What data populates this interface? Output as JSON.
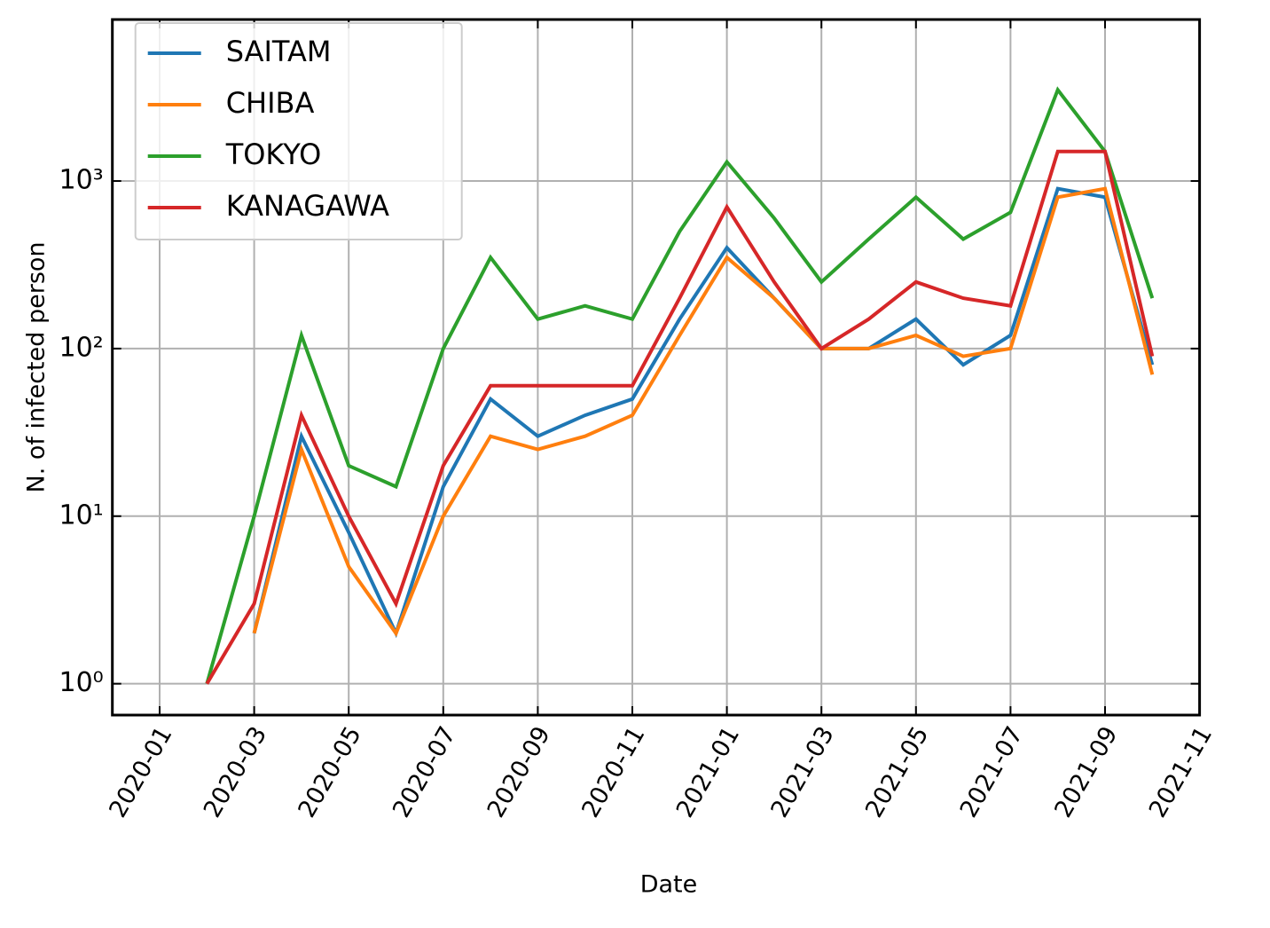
{
  "chart_data": {
    "type": "line",
    "x_label": "Date",
    "y_label": "N. of infected person",
    "x": [
      "2020-01",
      "2020-02",
      "2020-03",
      "2020-04",
      "2020-05",
      "2020-06",
      "2020-07",
      "2020-08",
      "2020-09",
      "2020-10",
      "2020-11",
      "2020-12",
      "2021-01",
      "2021-02",
      "2021-03",
      "2021-04",
      "2021-05",
      "2021-06",
      "2021-07",
      "2021-08",
      "2021-09",
      "2021-10"
    ],
    "series": [
      {
        "name": "SAITAM",
        "color": "#1f77b4",
        "values": [
          null,
          null,
          2,
          30,
          8,
          2,
          15,
          50,
          30,
          40,
          50,
          150,
          400,
          200,
          100,
          100,
          150,
          80,
          120,
          900,
          800,
          80
        ]
      },
      {
        "name": "CHIBA",
        "color": "#ff7f0e",
        "values": [
          null,
          null,
          2,
          25,
          5,
          2,
          10,
          30,
          25,
          30,
          40,
          120,
          350,
          200,
          100,
          100,
          120,
          90,
          100,
          800,
          900,
          70
        ]
      },
      {
        "name": "TOKYO",
        "color": "#2ca02c",
        "values": [
          null,
          1,
          10,
          120,
          20,
          15,
          100,
          350,
          150,
          180,
          150,
          500,
          1300,
          600,
          250,
          450,
          800,
          450,
          650,
          3500,
          1500,
          200
        ]
      },
      {
        "name": "KANAGAWA",
        "color": "#d62728",
        "values": [
          null,
          1,
          3,
          40,
          10,
          3,
          20,
          60,
          60,
          60,
          60,
          200,
          700,
          250,
          100,
          150,
          250,
          200,
          180,
          1500,
          1500,
          90
        ]
      }
    ],
    "xlim": [
      "2019-12",
      "2021-11"
    ],
    "xticks": [
      "2020-01",
      "2020-03",
      "2020-05",
      "2020-07",
      "2020-09",
      "2020-11",
      "2021-01",
      "2021-03",
      "2021-05",
      "2021-07",
      "2021-09",
      "2021-11"
    ],
    "ylim": [
      0.65,
      9200
    ],
    "log_y": true,
    "yticks": [
      {
        "value": 1,
        "label": "10⁰"
      },
      {
        "value": 10,
        "label": "10¹"
      },
      {
        "value": 100,
        "label": "10²"
      },
      {
        "value": 1000,
        "label": "10³"
      }
    ],
    "grid": true,
    "legend": "upper left"
  }
}
